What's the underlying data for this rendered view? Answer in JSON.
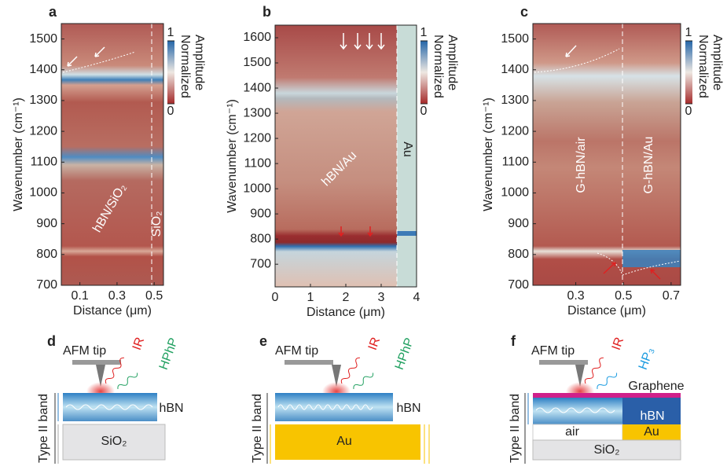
{
  "panels": [
    {
      "letter": "a",
      "ylabel": "Wavenumber (cm⁻¹)",
      "xlabel": "Distance (μm)",
      "xlim": [
        0,
        0.55
      ],
      "xticks": [
        0.1,
        0.3,
        0.5
      ],
      "ylim": [
        700,
        1550
      ],
      "yticks": [
        700,
        800,
        900,
        1000,
        1100,
        1200,
        1300,
        1400,
        1500
      ],
      "colorbar_title": [
        "Normalized",
        "Amplitude"
      ],
      "colorbar_ticks": [
        0,
        1
      ],
      "annotations": [
        "hBN/SiO₂",
        "SiO₂"
      ]
    },
    {
      "letter": "b",
      "ylabel": "Wavenumber (cm⁻¹)",
      "xlabel": "Distance (μm)",
      "xlim": [
        0,
        4
      ],
      "xticks": [
        0,
        1,
        2,
        3,
        4
      ],
      "ylim": [
        610,
        1650
      ],
      "yticks": [
        700,
        800,
        900,
        1000,
        1100,
        1200,
        1300,
        1400,
        1500,
        1600
      ],
      "colorbar_title": [
        "Normalized",
        "Amplitude"
      ],
      "colorbar_ticks": [
        0,
        1
      ],
      "annotations": [
        "hBN/Au",
        "Au"
      ]
    },
    {
      "letter": "c",
      "ylabel": "Wavenumber (cm⁻¹)",
      "xlabel": "Distance (μm)",
      "xlim": [
        0.12,
        0.74
      ],
      "xticks": [
        0.3,
        0.5,
        0.7
      ],
      "ylim": [
        700,
        1550
      ],
      "yticks": [
        700,
        800,
        900,
        1000,
        1100,
        1200,
        1300,
        1400,
        1500
      ],
      "colorbar_title": [
        "Normalized",
        "Amplitude"
      ],
      "colorbar_ticks": [
        0,
        1
      ],
      "annotations": [
        "G-hBN/air",
        "G-hBN/Au"
      ]
    }
  ],
  "diagrams": [
    {
      "letter": "d",
      "tip": "AFM tip",
      "incident": "IR",
      "emitted": "HPhP",
      "band": "Type II band",
      "layers": [
        "hBN",
        "SiO₂"
      ]
    },
    {
      "letter": "e",
      "tip": "AFM tip",
      "incident": "IR",
      "emitted": "HPhP",
      "band": "Type II band",
      "layers": [
        "hBN",
        "Au"
      ]
    },
    {
      "letter": "f",
      "tip": "AFM tip",
      "incident": "IR",
      "emitted": "HP₃",
      "band": "Type II band",
      "layers": [
        "Graphene",
        "hBN",
        "air",
        "Au",
        "SiO₂"
      ]
    }
  ]
}
